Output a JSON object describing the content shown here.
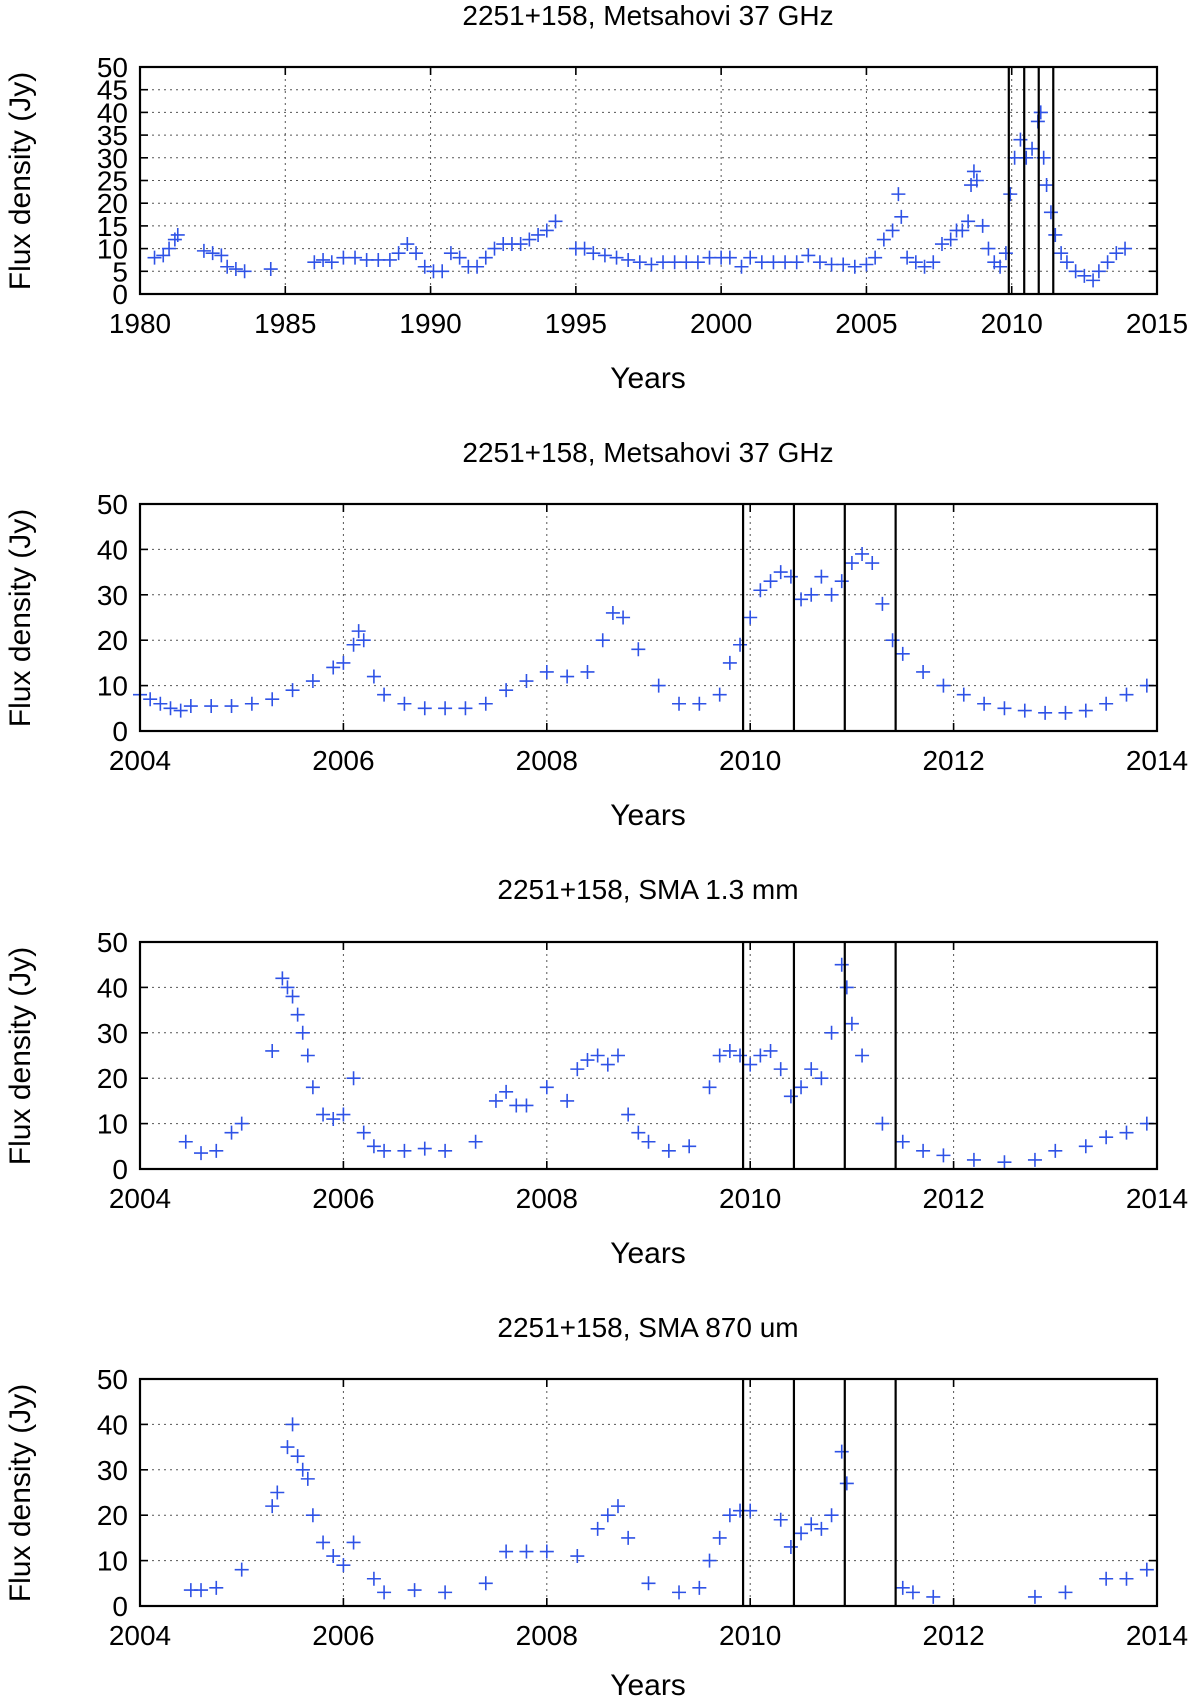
{
  "chart_data": [
    {
      "type": "scatter",
      "title": "2251+158, Metsahovi 37 GHz",
      "xlabel": "Years",
      "ylabel": "Flux density (Jy)",
      "xlim": [
        1980,
        2015
      ],
      "ylim": [
        0,
        50
      ],
      "xticks": [
        1980,
        1985,
        1990,
        1995,
        2000,
        2005,
        2010,
        2015
      ],
      "xtick_labels": [
        "1980",
        "1985",
        "1990",
        "1995",
        "2000",
        "2005",
        "2010",
        "2015"
      ],
      "yticks": [
        0,
        5,
        10,
        15,
        20,
        25,
        30,
        35,
        40,
        45,
        50
      ],
      "ytick_labels": [
        "0",
        "5",
        "10",
        "15",
        "20",
        "25",
        "30",
        "35",
        "40",
        "45",
        "50"
      ],
      "grid": true,
      "vertical_lines": [
        2009.9,
        2010.43,
        2010.93,
        2011.43
      ],
      "series": [
        {
          "name": "Metsahovi 37 GHz",
          "marker": "plus",
          "color": "#2e52e6",
          "x": [
            1980.5,
            1980.8,
            1981.0,
            1981.2,
            1981.3,
            1982.2,
            1982.5,
            1982.8,
            1983.0,
            1983.3,
            1983.6,
            1984.5,
            1986.0,
            1986.3,
            1986.6,
            1987.0,
            1987.4,
            1987.8,
            1988.2,
            1988.6,
            1988.9,
            1989.2,
            1989.5,
            1989.8,
            1990.1,
            1990.4,
            1990.7,
            1991.0,
            1991.3,
            1991.6,
            1991.9,
            1992.2,
            1992.5,
            1992.8,
            1993.1,
            1993.4,
            1993.7,
            1994.0,
            1994.3,
            1995.0,
            1995.3,
            1995.6,
            1996.0,
            1996.4,
            1996.8,
            1997.2,
            1997.6,
            1998.0,
            1998.4,
            1998.8,
            1999.2,
            1999.6,
            2000.0,
            2000.3,
            2000.7,
            2001.0,
            2001.4,
            2001.8,
            2002.2,
            2002.6,
            2003.0,
            2003.4,
            2003.8,
            2004.2,
            2004.6,
            2005.0,
            2005.3,
            2005.6,
            2005.9,
            2006.1,
            2006.2,
            2006.4,
            2006.7,
            2007.0,
            2007.3,
            2007.6,
            2007.9,
            2008.1,
            2008.3,
            2008.5,
            2008.6,
            2008.7,
            2008.8,
            2009.0,
            2009.2,
            2009.4,
            2009.6,
            2009.8,
            2009.95,
            2010.1,
            2010.3,
            2010.5,
            2010.7,
            2010.9,
            2011.0,
            2011.1,
            2011.2,
            2011.35,
            2011.5,
            2011.7,
            2011.9,
            2012.2,
            2012.5,
            2012.8,
            2013.0,
            2013.3,
            2013.6,
            2013.9
          ],
          "y": [
            8,
            8.5,
            10,
            12,
            13,
            9.5,
            9,
            8.5,
            6,
            5.5,
            5,
            5.5,
            7,
            7.5,
            7,
            8,
            8,
            7.5,
            7.5,
            7.5,
            9,
            11,
            9,
            6,
            5,
            5,
            9,
            8,
            6,
            6,
            8,
            10,
            11,
            11,
            11,
            12,
            13,
            14,
            16,
            10,
            10,
            9,
            8.5,
            8,
            7.5,
            7,
            6.5,
            7,
            7,
            7,
            7,
            8,
            8,
            8,
            6,
            8,
            7,
            7,
            7,
            7,
            8.5,
            7,
            6.5,
            6.5,
            6,
            6.5,
            8,
            12,
            14,
            22,
            17,
            8,
            7,
            6,
            7,
            11,
            12,
            14,
            14,
            16,
            24,
            27,
            25,
            15,
            10,
            7,
            6,
            9,
            22,
            30,
            34,
            30,
            32,
            38,
            40,
            30,
            24,
            18,
            13,
            9,
            7,
            5,
            4,
            3,
            5,
            7,
            9,
            10
          ]
        }
      ]
    },
    {
      "type": "scatter",
      "title": "2251+158, Metsahovi 37 GHz",
      "xlabel": "Years",
      "ylabel": "Flux density (Jy)",
      "xlim": [
        2004,
        2014
      ],
      "ylim": [
        0,
        50
      ],
      "xticks": [
        2004,
        2006,
        2008,
        2010,
        2012,
        2014
      ],
      "xtick_labels": [
        "2004",
        "2006",
        "2008",
        "2010",
        "2012",
        "2014"
      ],
      "yticks": [
        0,
        10,
        20,
        30,
        40,
        50
      ],
      "ytick_labels": [
        "0",
        "10",
        "20",
        "30",
        "40",
        "50"
      ],
      "grid": true,
      "vertical_lines": [
        2009.93,
        2010.43,
        2010.93,
        2011.43
      ],
      "series": [
        {
          "name": "Metsahovi 37 GHz",
          "marker": "plus",
          "color": "#2e52e6",
          "x": [
            2004.0,
            2004.1,
            2004.2,
            2004.3,
            2004.4,
            2004.5,
            2004.7,
            2004.9,
            2005.1,
            2005.3,
            2005.5,
            2005.7,
            2005.9,
            2006.0,
            2006.1,
            2006.15,
            2006.2,
            2006.3,
            2006.4,
            2006.6,
            2006.8,
            2007.0,
            2007.2,
            2007.4,
            2007.6,
            2007.8,
            2008.0,
            2008.2,
            2008.4,
            2008.55,
            2008.65,
            2008.75,
            2008.9,
            2009.1,
            2009.3,
            2009.5,
            2009.7,
            2009.8,
            2009.9,
            2010.0,
            2010.1,
            2010.2,
            2010.3,
            2010.4,
            2010.5,
            2010.6,
            2010.7,
            2010.8,
            2010.9,
            2011.0,
            2011.1,
            2011.2,
            2011.3,
            2011.4,
            2011.5,
            2011.7,
            2011.9,
            2012.1,
            2012.3,
            2012.5,
            2012.7,
            2012.9,
            2013.1,
            2013.3,
            2013.5,
            2013.7,
            2013.9
          ],
          "y": [
            8,
            7,
            6,
            5,
            4.5,
            5.5,
            5.5,
            5.5,
            6,
            7,
            9,
            11,
            14,
            15,
            19,
            22,
            20,
            12,
            8,
            6,
            5,
            5,
            5,
            6,
            9,
            11,
            13,
            12,
            13,
            20,
            26,
            25,
            18,
            10,
            6,
            6,
            8,
            15,
            19,
            25,
            31,
            33,
            35,
            34,
            29,
            30,
            34,
            30,
            33,
            37,
            39,
            37,
            28,
            20,
            17,
            13,
            10,
            8,
            6,
            5,
            4.5,
            4,
            4,
            4.5,
            6,
            8,
            10
          ]
        }
      ]
    },
    {
      "type": "scatter",
      "title": "2251+158, SMA 1.3 mm",
      "xlabel": "Years",
      "ylabel": "Flux density (Jy)",
      "xlim": [
        2004,
        2014
      ],
      "ylim": [
        0,
        50
      ],
      "xticks": [
        2004,
        2006,
        2008,
        2010,
        2012,
        2014
      ],
      "xtick_labels": [
        "2004",
        "2006",
        "2008",
        "2010",
        "2012",
        "2014"
      ],
      "yticks": [
        0,
        10,
        20,
        30,
        40,
        50
      ],
      "ytick_labels": [
        "0",
        "10",
        "20",
        "30",
        "40",
        "50"
      ],
      "grid": true,
      "vertical_lines": [
        2009.93,
        2010.43,
        2010.93,
        2011.43
      ],
      "series": [
        {
          "name": "SMA 1.3 mm",
          "marker": "plus",
          "color": "#2e52e6",
          "x": [
            2004.45,
            2004.6,
            2004.75,
            2004.9,
            2005.0,
            2005.3,
            2005.4,
            2005.45,
            2005.5,
            2005.55,
            2005.6,
            2005.65,
            2005.7,
            2005.8,
            2005.9,
            2006.0,
            2006.1,
            2006.2,
            2006.3,
            2006.4,
            2006.6,
            2006.8,
            2007.0,
            2007.3,
            2007.5,
            2007.6,
            2007.7,
            2007.8,
            2008.0,
            2008.2,
            2008.3,
            2008.4,
            2008.5,
            2008.6,
            2008.7,
            2008.8,
            2008.9,
            2009.0,
            2009.2,
            2009.4,
            2009.6,
            2009.7,
            2009.8,
            2009.9,
            2010.0,
            2010.1,
            2010.2,
            2010.3,
            2010.4,
            2010.5,
            2010.6,
            2010.7,
            2010.8,
            2010.9,
            2010.95,
            2011.0,
            2011.1,
            2011.3,
            2011.5,
            2011.7,
            2011.9,
            2012.2,
            2012.5,
            2012.8,
            2013.0,
            2013.3,
            2013.5,
            2013.7,
            2013.9
          ],
          "y": [
            6,
            3.5,
            4,
            8,
            10,
            26,
            42,
            40,
            38,
            34,
            30,
            25,
            18,
            12,
            11,
            12,
            20,
            8,
            5,
            4,
            4,
            4.5,
            4,
            6,
            15,
            17,
            14,
            14,
            18,
            15,
            22,
            24,
            25,
            23,
            25,
            12,
            8,
            6,
            4,
            5,
            18,
            25,
            26,
            25,
            23,
            25,
            26,
            22,
            16,
            18,
            22,
            20,
            30,
            45,
            40,
            32,
            25,
            10,
            6,
            4,
            3,
            2,
            1.5,
            2,
            4,
            5,
            7,
            8,
            10
          ]
        }
      ]
    },
    {
      "type": "scatter",
      "title": "2251+158, SMA 870 um",
      "xlabel": "Years",
      "ylabel": "Flux density (Jy)",
      "xlim": [
        2004,
        2014
      ],
      "ylim": [
        0,
        50
      ],
      "xticks": [
        2004,
        2006,
        2008,
        2010,
        2012,
        2014
      ],
      "xtick_labels": [
        "2004",
        "2006",
        "2008",
        "2010",
        "2012",
        "2014"
      ],
      "yticks": [
        0,
        10,
        20,
        30,
        40,
        50
      ],
      "ytick_labels": [
        "0",
        "10",
        "20",
        "30",
        "40",
        "50"
      ],
      "grid": true,
      "vertical_lines": [
        2009.93,
        2010.43,
        2010.93,
        2011.43
      ],
      "series": [
        {
          "name": "SMA 870 um",
          "marker": "plus",
          "color": "#2e52e6",
          "x": [
            2004.5,
            2004.6,
            2004.75,
            2005.0,
            2005.3,
            2005.35,
            2005.45,
            2005.5,
            2005.55,
            2005.6,
            2005.65,
            2005.7,
            2005.8,
            2005.9,
            2006.0,
            2006.1,
            2006.3,
            2006.4,
            2006.7,
            2007.0,
            2007.4,
            2007.6,
            2007.8,
            2008.0,
            2008.3,
            2008.5,
            2008.6,
            2008.7,
            2008.8,
            2009.0,
            2009.3,
            2009.5,
            2009.6,
            2009.7,
            2009.8,
            2009.9,
            2010.0,
            2010.3,
            2010.4,
            2010.5,
            2010.6,
            2010.7,
            2010.8,
            2010.9,
            2010.95,
            2011.5,
            2011.6,
            2011.8,
            2012.8,
            2013.1,
            2013.5,
            2013.7,
            2013.9
          ],
          "y": [
            3.5,
            3.5,
            4,
            8,
            22,
            25,
            35,
            40,
            33,
            30,
            28,
            20,
            14,
            11,
            9,
            14,
            6,
            3,
            3.5,
            3,
            5,
            12,
            12,
            12,
            11,
            17,
            20,
            22,
            15,
            5,
            3,
            4,
            10,
            15,
            20,
            21,
            21,
            19,
            13,
            16,
            18,
            17,
            20,
            34,
            27,
            4,
            3,
            2,
            2,
            3,
            6,
            6,
            8
          ]
        }
      ]
    }
  ]
}
